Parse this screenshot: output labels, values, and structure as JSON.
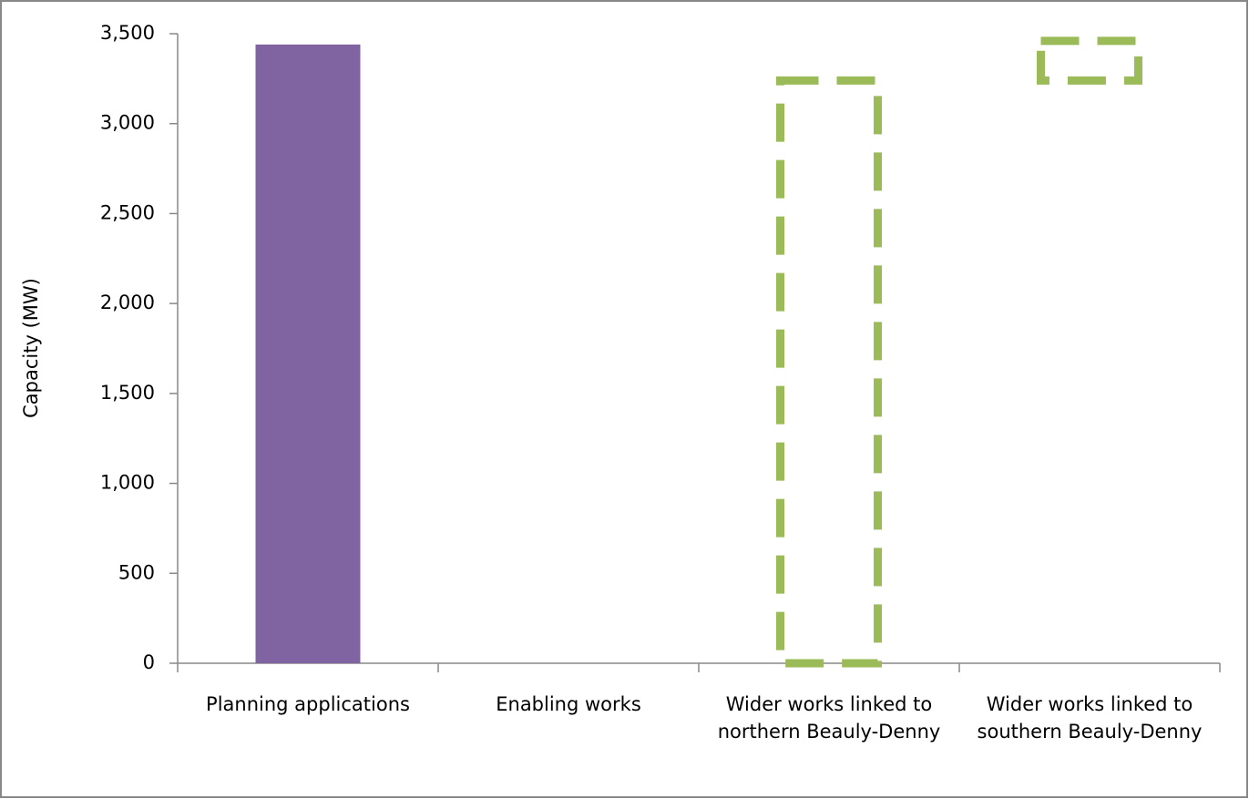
{
  "chart_data": {
    "type": "bar",
    "y_label": "Capacity (MW)",
    "categories": [
      "Planning applications",
      "Enabling works",
      "Wider works linked to northern Beauly-Denny",
      "Wider works linked to southern Beauly-Denny"
    ],
    "series": [
      {
        "color": "#8064a2",
        "line_style": "solid",
        "values": [
          3440,
          0,
          null,
          null
        ]
      },
      {
        "color": "#9bbb59",
        "line_style": "dashed",
        "values": [
          null,
          null,
          3240,
          220
        ],
        "bases": [
          null,
          null,
          0,
          3240
        ]
      }
    ],
    "ylim": [
      0,
      3500
    ],
    "yticks": [
      0,
      500,
      {
        "value": 1000,
        "label": "1,000"
      },
      {
        "value": 1500,
        "label": "1,500"
      },
      {
        "value": 2000,
        "label": "2,000"
      },
      {
        "value": 2500,
        "label": "2,500"
      },
      {
        "value": 3000,
        "label": "3,000"
      },
      {
        "value": 3500,
        "label": "3,500"
      }
    ]
  }
}
